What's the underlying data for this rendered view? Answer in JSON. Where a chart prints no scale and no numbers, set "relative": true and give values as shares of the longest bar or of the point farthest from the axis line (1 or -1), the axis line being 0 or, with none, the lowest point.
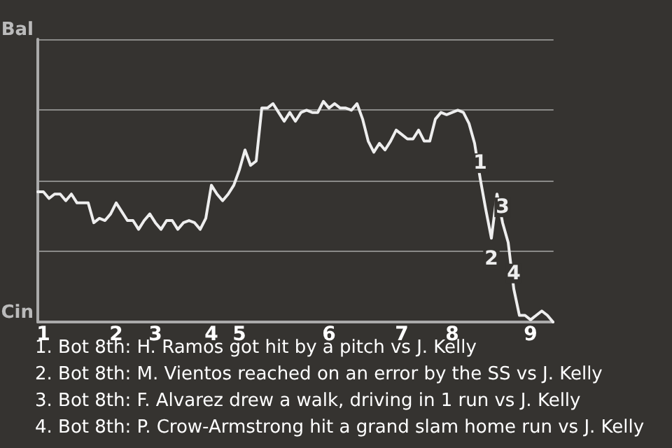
{
  "chart_data": {
    "type": "line",
    "categories": [
      null,
      "1",
      null,
      null,
      null,
      null,
      null,
      null,
      null,
      null,
      null,
      null,
      null,
      null,
      "2",
      null,
      null,
      null,
      null,
      null,
      null,
      "3",
      null,
      null,
      null,
      null,
      null,
      null,
      null,
      null,
      null,
      "4",
      null,
      null,
      null,
      null,
      "5",
      null,
      null,
      null,
      null,
      null,
      null,
      null,
      null,
      null,
      null,
      null,
      null,
      null,
      null,
      null,
      "6",
      null,
      null,
      null,
      null,
      null,
      null,
      null,
      null,
      null,
      null,
      null,
      null,
      "7",
      null,
      null,
      null,
      null,
      null,
      null,
      null,
      null,
      "8",
      null,
      null,
      null,
      null,
      null,
      null,
      null,
      null,
      null,
      null,
      null,
      null,
      null,
      "9",
      null,
      null,
      null,
      null
    ],
    "relative": true,
    "series": [
      {
        "color": "#eeeeee",
        "values": [
          0.59,
          0.59,
          0.56,
          0.58,
          0.58,
          0.55,
          0.58,
          0.54,
          0.54,
          0.54,
          0.45,
          0.47,
          0.46,
          0.49,
          0.54,
          0.5,
          0.46,
          0.46,
          0.42,
          0.46,
          0.49,
          0.45,
          0.42,
          0.46,
          0.46,
          0.42,
          0.45,
          0.46,
          0.45,
          0.42,
          0.47,
          0.62,
          0.58,
          0.55,
          0.58,
          0.62,
          0.69,
          0.78,
          0.71,
          0.73,
          0.97,
          0.97,
          0.99,
          0.95,
          0.91,
          0.95,
          0.91,
          0.95,
          0.96,
          0.95,
          0.95,
          1,
          0.97,
          0.99,
          0.97,
          0.97,
          0.96,
          0.99,
          0.92,
          0.82,
          0.77,
          0.81,
          0.78,
          0.82,
          0.87,
          0.85,
          0.83,
          0.83,
          0.87,
          0.82,
          0.82,
          0.92,
          0.95,
          0.94,
          0.95,
          0.96,
          0.95,
          0.9,
          0.81,
          0.65,
          0.51,
          0.38,
          0.58,
          0.45,
          0.36,
          0.15,
          0.03,
          0.03,
          0.01,
          0.03,
          0.05,
          0.03,
          0
        ]
      }
    ],
    "grid": "y",
    "marker": "none",
    "annotations": [
      {
        "text": "1",
        "y": 0.65
      },
      {
        "text": "2",
        "y": 0.38
      },
      {
        "text": "3",
        "y": 0.45
      },
      {
        "text": "4",
        "y": 0.15
      },
      "Bal",
      "Cin",
      "1. Bot 8th: H. Ramos got hit by a pitch vs J. Kelly",
      "2. Bot 8th: M. Vientos reached on an error by the SS vs J. Kelly",
      "3. Bot 8th: F. Alvarez drew a walk, driving in 1 run vs J. Kelly",
      "4. Bot 8th: P. Crow-Armstrong hit a grand slam home run vs J. Kelly"
    ]
  }
}
